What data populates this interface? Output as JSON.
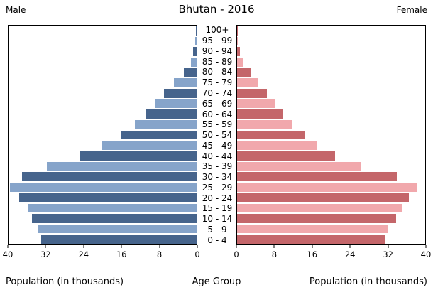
{
  "header": {
    "title": "Bhutan - 2016",
    "male_label": "Male",
    "female_label": "Female"
  },
  "footer": {
    "left_axis_label": "Population (in thousands)",
    "center_axis_label": "Age Group",
    "right_axis_label": "Population (in thousands)"
  },
  "colors": {
    "male_dark": "#46648c",
    "male_light": "#86a4ca",
    "female_dark": "#c4666a",
    "female_light": "#f1a8ac",
    "axis": "#000000",
    "background": "#ffffff"
  },
  "chart_data": {
    "type": "bar",
    "subtype": "population-pyramid",
    "title": "Bhutan - 2016",
    "xlabel_left": "Population (in thousands)",
    "xlabel_right": "Population (in thousands)",
    "center_label": "Age Group",
    "xlim": [
      0,
      40
    ],
    "xticks": [
      0,
      8,
      16,
      24,
      32,
      40
    ],
    "grid": false,
    "legend_position": "top-corners",
    "categories": [
      "100+",
      "95 - 99",
      "90 - 94",
      "85 - 89",
      "80 - 84",
      "75 - 79",
      "70 - 74",
      "65 - 69",
      "60 - 64",
      "55 - 59",
      "50 - 54",
      "45 - 49",
      "40 - 44",
      "35 - 39",
      "30 - 34",
      "25 - 29",
      "20 - 24",
      "15 - 19",
      "10 - 14",
      "5 - 9",
      "0 - 4"
    ],
    "series": [
      {
        "name": "Male",
        "side": "left",
        "values": [
          0.2,
          0.3,
          0.8,
          1.2,
          2.7,
          4.8,
          7.0,
          8.9,
          10.7,
          13.2,
          16.2,
          20.2,
          24.9,
          31.8,
          37.2,
          39.7,
          37.8,
          36.0,
          35.0,
          33.6,
          33.0
        ]
      },
      {
        "name": "Female",
        "side": "right",
        "values": [
          0.2,
          0.2,
          0.6,
          1.3,
          2.9,
          4.5,
          6.4,
          8.0,
          9.6,
          11.6,
          14.4,
          16.9,
          20.9,
          26.4,
          33.9,
          38.4,
          36.6,
          35.0,
          33.8,
          32.2,
          31.5
        ]
      }
    ]
  }
}
